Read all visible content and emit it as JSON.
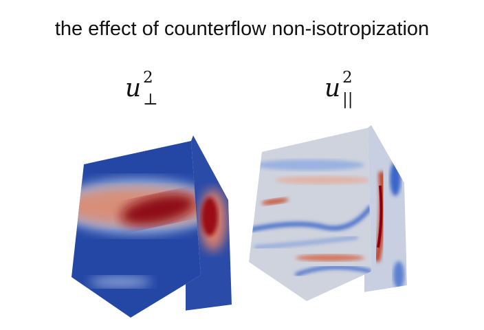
{
  "title": "the effect of counterflow non-isotropization",
  "panels": [
    {
      "symbol": "u",
      "superscript": "2",
      "subscript": "⊥",
      "colormap": [
        "#1f3f9e",
        "#f0e6e0",
        "#8b0010"
      ]
    },
    {
      "symbol": "u",
      "superscript": "2",
      "subscript": "||",
      "colormap": [
        "#3b66c8",
        "#ddd8d8",
        "#c0402c"
      ]
    }
  ]
}
